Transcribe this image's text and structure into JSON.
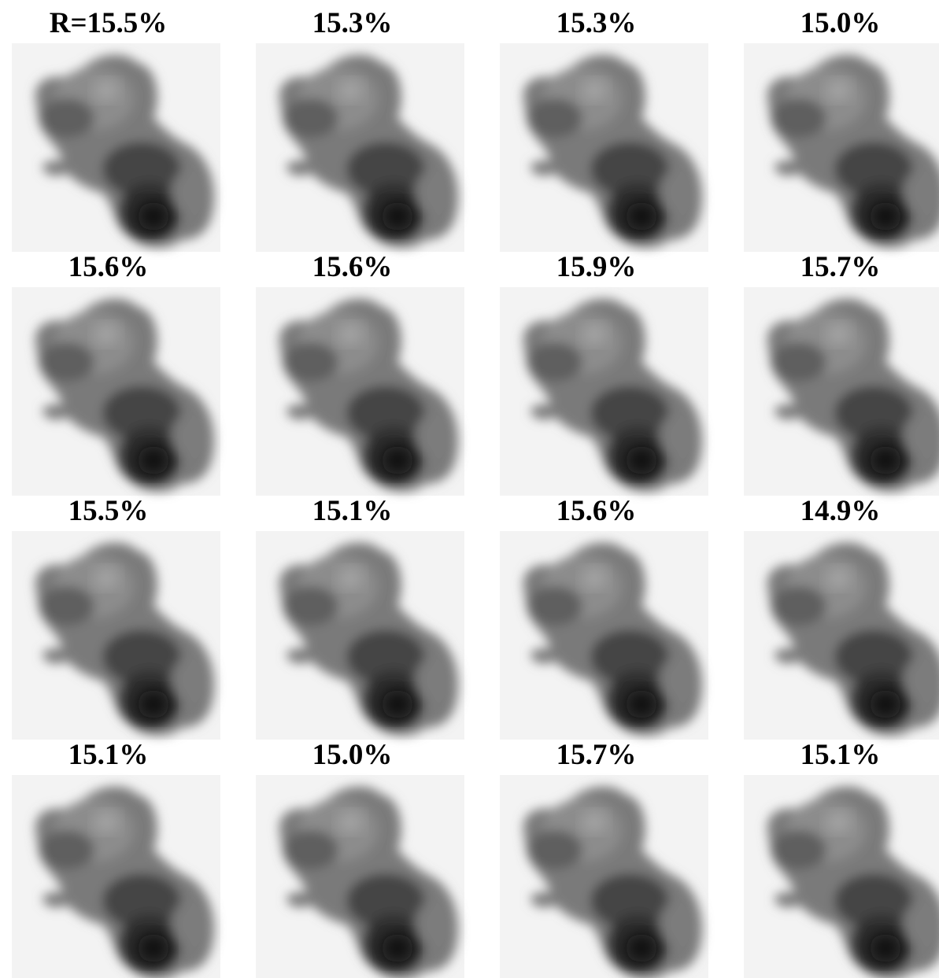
{
  "panels": [
    {
      "label": "R=15.5%"
    },
    {
      "label": "15.3%"
    },
    {
      "label": "15.3%"
    },
    {
      "label": "15.0%"
    },
    {
      "label": "15.6%"
    },
    {
      "label": "15.6%"
    },
    {
      "label": "15.9%"
    },
    {
      "label": "15.7%"
    },
    {
      "label": "15.5%"
    },
    {
      "label": "15.1%"
    },
    {
      "label": "15.6%"
    },
    {
      "label": "14.9%"
    },
    {
      "label": "15.1%"
    },
    {
      "label": "15.0%"
    },
    {
      "label": "15.7%"
    },
    {
      "label": "15.1%"
    }
  ]
}
